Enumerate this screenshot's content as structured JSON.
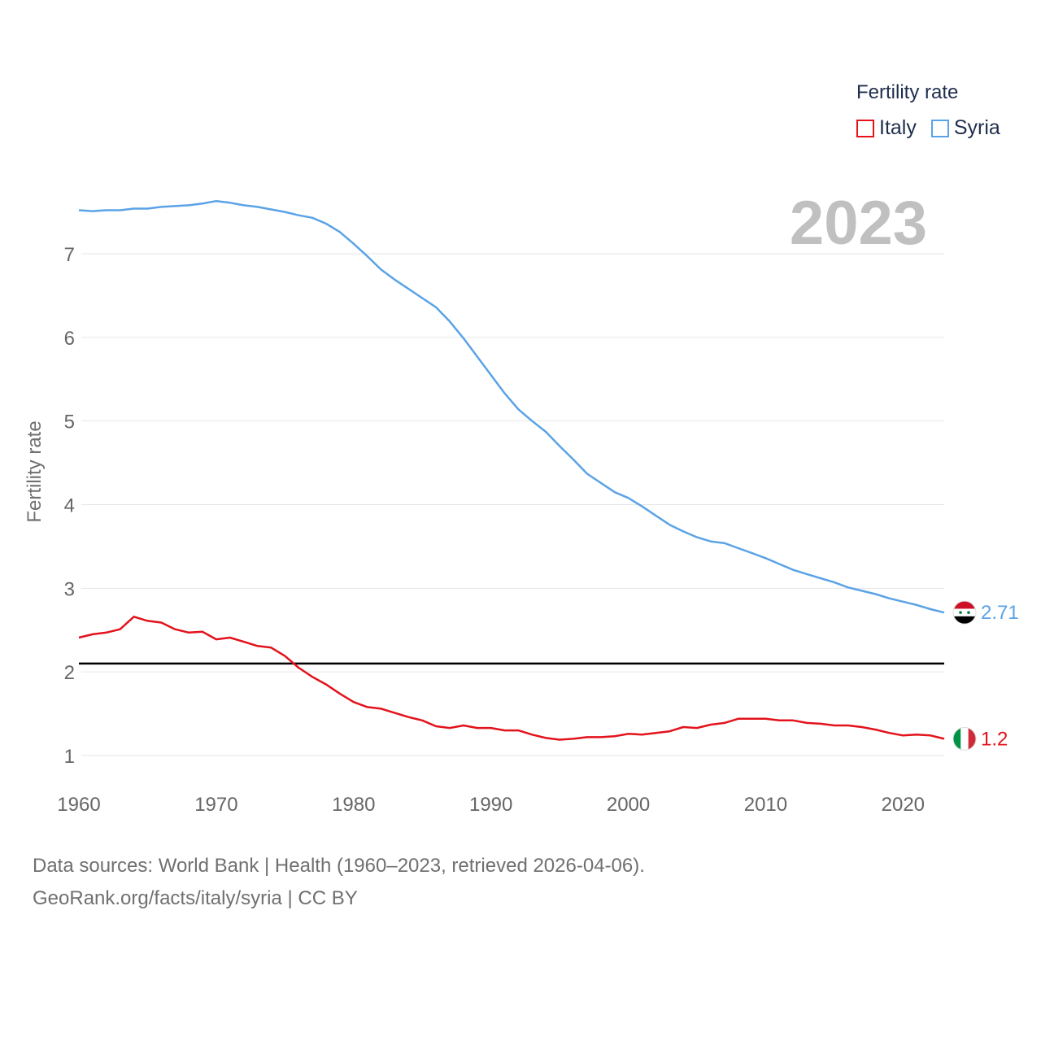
{
  "legend": {
    "title": "Fertility rate",
    "items": [
      {
        "label": "Italy",
        "color": "#e3121b"
      },
      {
        "label": "Syria",
        "color": "#5ba3e6"
      }
    ]
  },
  "footer": {
    "line1": "Data sources: World Bank | Health (1960–2023, retrieved 2026-04-06).",
    "line2": "GeoRank.org/facts/italy/syria | CC BY"
  },
  "chart_data": {
    "type": "line",
    "title": "Fertility rate",
    "year_label": "2023",
    "xlabel": "",
    "ylabel": "Fertility rate",
    "xlim": [
      1960,
      2023
    ],
    "ylim": [
      1,
      7.6
    ],
    "xticks": [
      1960,
      1970,
      1980,
      1990,
      2000,
      2010,
      2020
    ],
    "yticks": [
      1,
      2,
      3,
      4,
      5,
      6,
      7
    ],
    "reference_line": 2.1,
    "x": [
      1960,
      1961,
      1962,
      1963,
      1964,
      1965,
      1966,
      1967,
      1968,
      1969,
      1970,
      1971,
      1972,
      1973,
      1974,
      1975,
      1976,
      1977,
      1978,
      1979,
      1980,
      1981,
      1982,
      1983,
      1984,
      1985,
      1986,
      1987,
      1988,
      1989,
      1990,
      1991,
      1992,
      1993,
      1994,
      1995,
      1996,
      1997,
      1998,
      1999,
      2000,
      2001,
      2002,
      2003,
      2004,
      2005,
      2006,
      2007,
      2008,
      2009,
      2010,
      2011,
      2012,
      2013,
      2014,
      2015,
      2016,
      2017,
      2018,
      2019,
      2020,
      2021,
      2022,
      2023
    ],
    "series": [
      {
        "name": "Syria",
        "color": "#5ba3e6",
        "end_label": "2.71",
        "values": [
          7.52,
          7.51,
          7.52,
          7.52,
          7.54,
          7.54,
          7.56,
          7.57,
          7.58,
          7.6,
          7.63,
          7.61,
          7.58,
          7.56,
          7.53,
          7.5,
          7.46,
          7.43,
          7.36,
          7.26,
          7.12,
          6.97,
          6.81,
          6.69,
          6.58,
          6.47,
          6.36,
          6.19,
          5.99,
          5.77,
          5.55,
          5.33,
          5.14,
          5,
          4.87,
          4.7,
          4.54,
          4.37,
          4.26,
          4.15,
          4.08,
          3.98,
          3.87,
          3.76,
          3.68,
          3.61,
          3.56,
          3.54,
          3.48,
          3.42,
          3.36,
          3.29,
          3.22,
          3.17,
          3.12,
          3.07,
          3.01,
          2.97,
          2.93,
          2.88,
          2.84,
          2.8,
          2.75,
          2.71
        ]
      },
      {
        "name": "Italy",
        "color": "#e3121b",
        "end_label": "1.2",
        "values": [
          2.41,
          2.45,
          2.47,
          2.51,
          2.66,
          2.61,
          2.59,
          2.51,
          2.47,
          2.48,
          2.39,
          2.41,
          2.36,
          2.31,
          2.29,
          2.19,
          2.05,
          1.94,
          1.85,
          1.74,
          1.64,
          1.58,
          1.56,
          1.51,
          1.46,
          1.42,
          1.35,
          1.33,
          1.36,
          1.33,
          1.33,
          1.3,
          1.3,
          1.25,
          1.21,
          1.19,
          1.2,
          1.22,
          1.22,
          1.23,
          1.26,
          1.25,
          1.27,
          1.29,
          1.34,
          1.33,
          1.37,
          1.39,
          1.44,
          1.44,
          1.44,
          1.42,
          1.42,
          1.39,
          1.38,
          1.36,
          1.36,
          1.34,
          1.31,
          1.27,
          1.24,
          1.25,
          1.24,
          1.2
        ]
      }
    ]
  }
}
